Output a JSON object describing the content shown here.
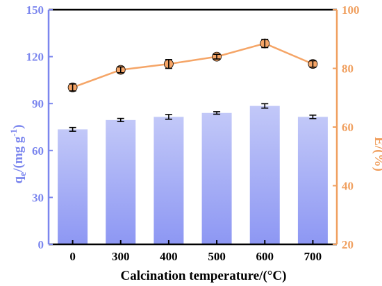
{
  "chart_data": {
    "type": "bar",
    "categories": [
      "0",
      "300",
      "400",
      "500",
      "600",
      "700"
    ],
    "xlabel": "Calcination temperature/(°C)",
    "ylabel": {
      "main": "q",
      "sub": "e",
      "rest": "/(mg g",
      "sup": "-1",
      "end": ")"
    },
    "y2label": "E/(%)",
    "ylim": [
      0,
      150
    ],
    "yticks": [
      "0",
      "30",
      "60",
      "90",
      "120",
      "150"
    ],
    "y2lim": [
      20,
      100
    ],
    "y2ticks": [
      "20",
      "40",
      "60",
      "80",
      "100"
    ],
    "grid": false,
    "series": [
      {
        "axis": "left",
        "kind": "bar",
        "values": [
          73.5,
          79.5,
          81.5,
          84.0,
          88.5,
          81.5
        ],
        "errors": [
          1.2,
          1.0,
          1.5,
          0.8,
          1.4,
          1.1
        ],
        "color": "#8d97f3"
      },
      {
        "axis": "right",
        "kind": "line",
        "values": [
          73.5,
          79.5,
          81.5,
          84.0,
          88.5,
          81.5
        ],
        "errors": [
          1.2,
          1.0,
          1.5,
          0.8,
          1.4,
          1.1
        ],
        "color": "#f5a567"
      }
    ],
    "colors": {
      "left_axis": "#7b86ee",
      "right_axis": "#f0a060",
      "bar_top": "#b7bdf6",
      "bar_bottom": "#8d97f3"
    }
  }
}
